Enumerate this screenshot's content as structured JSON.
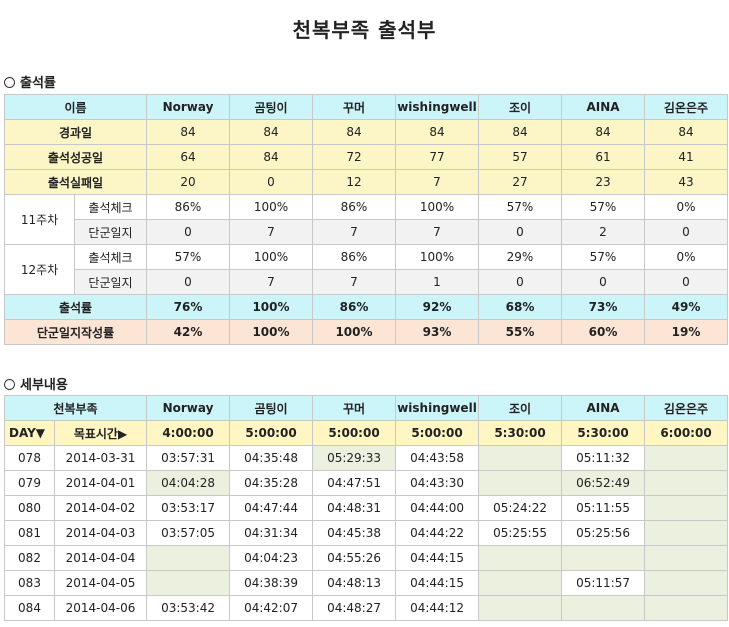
{
  "title": "천복부족 출석부",
  "summary": {
    "section_label": "출석률",
    "header_label": "이름",
    "members": [
      "Norway",
      "곰팅이",
      "꾸머",
      "wishingwell",
      "조이",
      "AINA",
      "김온은주"
    ],
    "rows": [
      {
        "label": "경과일",
        "values": [
          "84",
          "84",
          "84",
          "84",
          "84",
          "84",
          "84"
        ]
      },
      {
        "label": "출석성공일",
        "values": [
          "64",
          "84",
          "72",
          "77",
          "57",
          "61",
          "41"
        ]
      },
      {
        "label": "출석실패일",
        "values": [
          "20",
          "0",
          "12",
          "7",
          "27",
          "23",
          "43"
        ]
      }
    ],
    "weeks": [
      {
        "label": "11주차",
        "check_label": "출석체크",
        "check_values": [
          "86%",
          "100%",
          "86%",
          "100%",
          "57%",
          "57%",
          "0%"
        ],
        "journal_label": "단군일지",
        "journal_values": [
          "0",
          "7",
          "7",
          "7",
          "0",
          "2",
          "0"
        ]
      },
      {
        "label": "12주차",
        "check_label": "출석체크",
        "check_values": [
          "57%",
          "100%",
          "86%",
          "100%",
          "29%",
          "57%",
          "0%"
        ],
        "journal_label": "단군일지",
        "journal_values": [
          "0",
          "7",
          "7",
          "1",
          "0",
          "0",
          "0"
        ]
      }
    ],
    "attendance_rate": {
      "label": "출석률",
      "values": [
        "76%",
        "100%",
        "86%",
        "92%",
        "68%",
        "73%",
        "49%"
      ]
    },
    "journal_rate": {
      "label": "단군일지작성률",
      "values": [
        "42%",
        "100%",
        "100%",
        "93%",
        "55%",
        "60%",
        "19%"
      ]
    }
  },
  "detail": {
    "section_label": "세부내용",
    "header_label": "천복부족",
    "members": [
      "Norway",
      "곰팅이",
      "꾸머",
      "wishingwell",
      "조이",
      "AINA",
      "김온은주"
    ],
    "day_label": "DAY▼",
    "target_label": "목표시간▶",
    "targets": [
      "4:00:00",
      "5:00:00",
      "5:00:00",
      "5:00:00",
      "5:30:00",
      "5:30:00",
      "6:00:00"
    ],
    "rows": [
      {
        "day": "078",
        "date": "2014-03-31",
        "times": [
          "03:57:31",
          "04:35:48",
          "05:29:33",
          "04:43:58",
          "",
          "05:11:32",
          ""
        ]
      },
      {
        "day": "079",
        "date": "2014-04-01",
        "times": [
          "04:04:28",
          "04:35:28",
          "04:47:51",
          "04:43:30",
          "",
          "06:52:49",
          ""
        ]
      },
      {
        "day": "080",
        "date": "2014-04-02",
        "times": [
          "03:53:17",
          "04:47:44",
          "04:48:31",
          "04:44:00",
          "05:24:22",
          "05:11:55",
          ""
        ]
      },
      {
        "day": "081",
        "date": "2014-04-03",
        "times": [
          "03:57:05",
          "04:31:34",
          "04:45:38",
          "04:44:22",
          "05:25:55",
          "05:25:56",
          ""
        ]
      },
      {
        "day": "082",
        "date": "2014-04-04",
        "times": [
          "",
          "04:04:23",
          "04:55:26",
          "04:44:15",
          "",
          "",
          ""
        ]
      },
      {
        "day": "083",
        "date": "2014-04-05",
        "times": [
          "",
          "04:38:39",
          "04:48:13",
          "04:44:15",
          "",
          "05:11:57",
          ""
        ]
      },
      {
        "day": "084",
        "date": "2014-04-06",
        "times": [
          "03:53:42",
          "04:42:07",
          "04:48:27",
          "04:44:12",
          "",
          "",
          ""
        ]
      }
    ]
  }
}
